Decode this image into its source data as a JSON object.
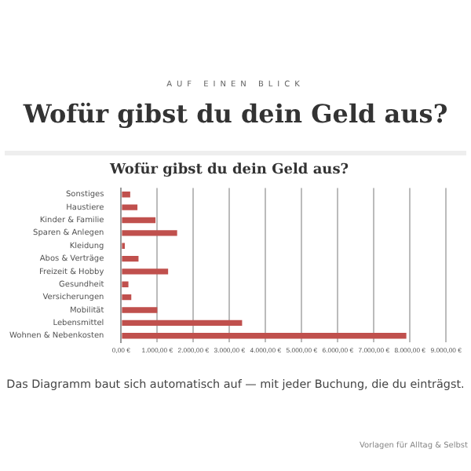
{
  "chart_data": {
    "type": "bar",
    "orientation": "horizontal",
    "title": "Wofür gibst du dein Geld aus?",
    "annotations": [
      "AUF EINEN BLICK",
      "Wofür gibst du dein Geld aus?",
      "Das Diagramm baut sich automatisch auf — mit jeder Buchung, die du einträgst.",
      "Vorlagen für Alltag & Selbst"
    ],
    "categories": [
      "Sonstiges",
      "Haustiere",
      "Kinder & Familie",
      "Sparen & Anlegen",
      "Kleidung",
      "Abos & Verträge",
      "Freizeit & Hobby",
      "Gesundheit",
      "Versicherungen",
      "Mobilität",
      "Lebensmittel",
      "Wohnen & Nebenkosten"
    ],
    "values": [
      250,
      450,
      950,
      1550,
      100,
      480,
      1300,
      200,
      280,
      1000,
      3350,
      7900
    ],
    "color": "#c0504d",
    "xlim": [
      0,
      9000
    ],
    "xticks": [
      {
        "value": 0,
        "label": "0,00 €"
      },
      {
        "value": 1000,
        "label": "1.000,00 €"
      },
      {
        "value": 2000,
        "label": "2.000,00 €"
      },
      {
        "value": 3000,
        "label": "3.000,00 €"
      },
      {
        "value": 4000,
        "label": "4.000,00 €"
      },
      {
        "value": 5000,
        "label": "5.000,00 €"
      },
      {
        "value": 6000,
        "label": "6.000,00 €"
      },
      {
        "value": 7000,
        "label": "7.000,00 €"
      },
      {
        "value": 8000,
        "label": "8.000,00 €"
      },
      {
        "value": 9000,
        "label": "9.000,00 €"
      }
    ],
    "grid": "x",
    "legend": false
  }
}
